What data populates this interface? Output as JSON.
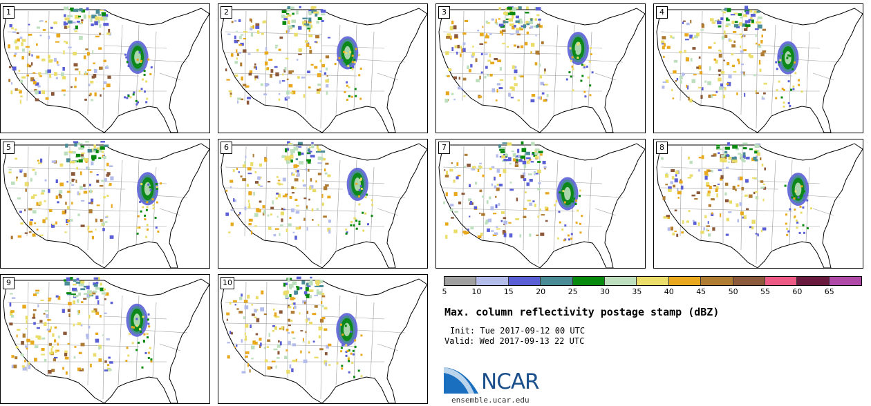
{
  "panels": [
    {
      "label": "1"
    },
    {
      "label": "2"
    },
    {
      "label": "3"
    },
    {
      "label": "4"
    },
    {
      "label": "5"
    },
    {
      "label": "6"
    },
    {
      "label": "7"
    },
    {
      "label": "8"
    },
    {
      "label": "9"
    },
    {
      "label": "10"
    }
  ],
  "colorbar": {
    "colors": [
      "#a0a0a0",
      "#b4bcec",
      "#5a5fd6",
      "#4a8c96",
      "#078a0e",
      "#bddfbe",
      "#eadd6a",
      "#e8a91e",
      "#b07c34",
      "#8c5a3a",
      "#ee5a86",
      "#6a1a3e",
      "#b04aa8"
    ],
    "ticks": [
      "5",
      "10",
      "15",
      "20",
      "25",
      "30",
      "35",
      "40",
      "45",
      "50",
      "55",
      "60",
      "65"
    ]
  },
  "title": "Max. column reflectivity postage stamp (dBZ)",
  "init": "Init: Tue 2017-09-12 00 UTC",
  "valid": "Valid: Wed 2017-09-13 22 UTC",
  "logo_text": "NCAR",
  "website": "ensemble.ucar.edu"
}
